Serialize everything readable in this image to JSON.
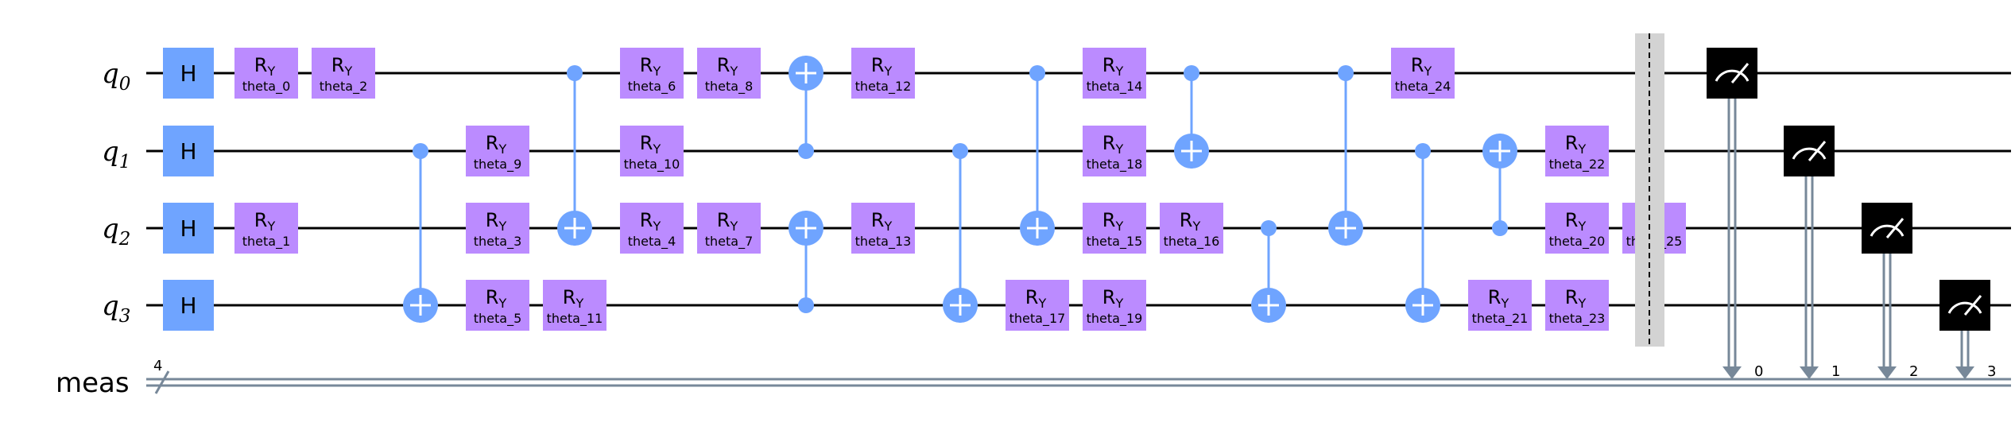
{
  "qubits": [
    "q",
    "q",
    "q",
    "q"
  ],
  "qubit_indices": [
    "0",
    "1",
    "2",
    "3"
  ],
  "creg": {
    "label": "meas",
    "size": "4"
  },
  "colors": {
    "h_gate": "#6fa4ff",
    "ry_gate": "#bb8bff",
    "cnot": "#6fa4ff",
    "measure": "#000000",
    "meas_line": "#778899",
    "barrier": "#d3d3d3"
  },
  "h_label": "H",
  "ry_label": "R",
  "ry_sub": "Y",
  "ops": [
    {
      "type": "h",
      "q": 0,
      "col": 0
    },
    {
      "type": "h",
      "q": 1,
      "col": 0
    },
    {
      "type": "h",
      "q": 2,
      "col": 0
    },
    {
      "type": "h",
      "q": 3,
      "col": 0
    },
    {
      "type": "ry",
      "q": 0,
      "col": 1,
      "param": "theta_0"
    },
    {
      "type": "ry",
      "q": 2,
      "col": 1,
      "param": "theta_1"
    },
    {
      "type": "ry",
      "q": 0,
      "col": 2,
      "param": "theta_2"
    },
    {
      "type": "cx",
      "c": 1,
      "t": 3,
      "col": 3
    },
    {
      "type": "ry",
      "q": 1,
      "col": 4,
      "param": "theta_9"
    },
    {
      "type": "ry",
      "q": 2,
      "col": 4,
      "param": "theta_3"
    },
    {
      "type": "ry",
      "q": 3,
      "col": 4,
      "param": "theta_5"
    },
    {
      "type": "cx",
      "c": 0,
      "t": 2,
      "col": 5
    },
    {
      "type": "ry",
      "q": 3,
      "col": 5,
      "param": "theta_11"
    },
    {
      "type": "ry",
      "q": 0,
      "col": 6,
      "param": "theta_6"
    },
    {
      "type": "ry",
      "q": 1,
      "col": 6,
      "param": "theta_10"
    },
    {
      "type": "ry",
      "q": 2,
      "col": 6,
      "param": "theta_4"
    },
    {
      "type": "ry",
      "q": 0,
      "col": 7,
      "param": "theta_8"
    },
    {
      "type": "ry",
      "q": 2,
      "col": 7,
      "param": "theta_7"
    },
    {
      "type": "cx",
      "c": 1,
      "t": 0,
      "col": 8
    },
    {
      "type": "cx",
      "c": 3,
      "t": 2,
      "col": 8
    },
    {
      "type": "ry",
      "q": 0,
      "col": 9,
      "param": "theta_12"
    },
    {
      "type": "ry",
      "q": 2,
      "col": 9,
      "param": "theta_13"
    },
    {
      "type": "cx",
      "c": 1,
      "t": 3,
      "col": 10
    },
    {
      "type": "cx",
      "c": 0,
      "t": 2,
      "col": 11
    },
    {
      "type": "ry",
      "q": 3,
      "col": 11,
      "param": "theta_17"
    },
    {
      "type": "ry",
      "q": 0,
      "col": 12,
      "param": "theta_14"
    },
    {
      "type": "ry",
      "q": 1,
      "col": 12,
      "param": "theta_18"
    },
    {
      "type": "ry",
      "q": 2,
      "col": 12,
      "param": "theta_15"
    },
    {
      "type": "ry",
      "q": 3,
      "col": 12,
      "param": "theta_19"
    },
    {
      "type": "cx",
      "c": 0,
      "t": 1,
      "col": 13
    },
    {
      "type": "ry",
      "q": 2,
      "col": 13,
      "param": "theta_16"
    },
    {
      "type": "cx",
      "c": 2,
      "t": 3,
      "col": 14
    },
    {
      "type": "cx",
      "c": 0,
      "t": 2,
      "col": 15
    },
    {
      "type": "ry",
      "q": 0,
      "col": 16,
      "param": "theta_24"
    },
    {
      "type": "cx",
      "c": 1,
      "t": 3,
      "col": 16
    },
    {
      "type": "cx",
      "c": 2,
      "t": 1,
      "col": 17
    },
    {
      "type": "ry",
      "q": 3,
      "col": 17,
      "param": "theta_21"
    },
    {
      "type": "ry",
      "q": 1,
      "col": 18,
      "param": "theta_22"
    },
    {
      "type": "ry",
      "q": 2,
      "col": 18,
      "param": "theta_20"
    },
    {
      "type": "ry",
      "q": 3,
      "col": 18,
      "param": "theta_23"
    },
    {
      "type": "ry",
      "q": 2,
      "col": 19,
      "param": "theta_25"
    }
  ],
  "measurements": [
    {
      "q": 0,
      "bit": "0"
    },
    {
      "q": 1,
      "bit": "1"
    },
    {
      "q": 2,
      "bit": "2"
    },
    {
      "q": 3,
      "bit": "3"
    }
  ]
}
